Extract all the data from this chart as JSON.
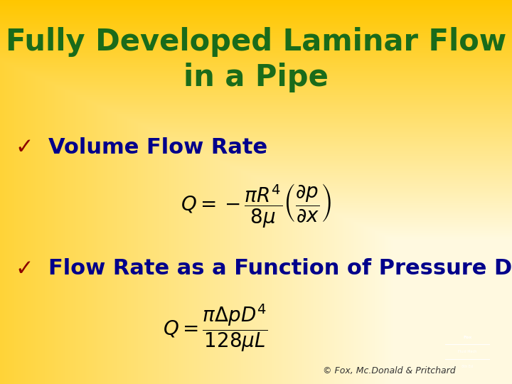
{
  "title_line1": "Fully Developed Laminar Flow",
  "title_line2": "in a Pipe",
  "title_color": "#1a6b1a",
  "title_fontsize": 30,
  "bullet_color": "#00008B",
  "bullet_fontsize": 22,
  "checkmark_color": "#8B0000",
  "eq_color": "#000000",
  "eq_fontsize": 20,
  "copyright": "© Fox, Mc.Donald & Pritchard",
  "copyright_color": "#333333",
  "copyright_fontsize": 9,
  "bullet1_text": "Volume Flow Rate",
  "bullet2_text": "Flow Rate as a Function of Pressure Drop"
}
